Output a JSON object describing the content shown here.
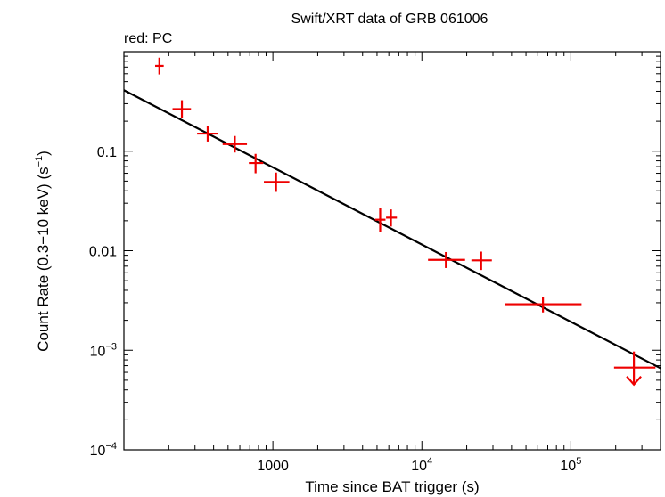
{
  "chart_data": {
    "type": "scatter",
    "title": "Swift/XRT data of GRB 061006",
    "subtitle": "red: PC",
    "xlabel": "Time since BAT trigger (s)",
    "ylabel_main": "Count Rate (0.3−10 keV) (s",
    "ylabel_sup": "−1",
    "ylabel_end": ")",
    "x_scale": "log",
    "y_scale": "log",
    "xlim": [
      100,
      400000
    ],
    "ylim": [
      0.0001,
      1
    ],
    "x_ticks": [
      {
        "value": 1000,
        "base": "1000",
        "exp": ""
      },
      {
        "value": 10000,
        "base": "10",
        "exp": "4"
      },
      {
        "value": 100000,
        "base": "10",
        "exp": "5"
      }
    ],
    "y_ticks": [
      {
        "value": 0.1,
        "base": "0.1",
        "exp": ""
      },
      {
        "value": 0.01,
        "base": "0.01",
        "exp": ""
      },
      {
        "value": 0.001,
        "base": "10",
        "exp": "−3"
      },
      {
        "value": 0.0001,
        "base": "10",
        "exp": "−4"
      }
    ],
    "colors": {
      "data": "#ee0000",
      "fit": "#000000",
      "axes": "#000000"
    },
    "series": [
      {
        "name": "PC",
        "points": [
          {
            "x": 173,
            "xlo": 162,
            "xhi": 185,
            "y": 0.72,
            "ylo": 0.59,
            "yhi": 0.87
          },
          {
            "x": 245,
            "xlo": 212,
            "xhi": 282,
            "y": 0.265,
            "ylo": 0.215,
            "yhi": 0.325
          },
          {
            "x": 365,
            "xlo": 310,
            "xhi": 430,
            "y": 0.15,
            "ylo": 0.125,
            "yhi": 0.18
          },
          {
            "x": 555,
            "xlo": 460,
            "xhi": 670,
            "y": 0.118,
            "ylo": 0.097,
            "yhi": 0.142
          },
          {
            "x": 765,
            "xlo": 690,
            "xhi": 860,
            "y": 0.076,
            "ylo": 0.06,
            "yhi": 0.094
          },
          {
            "x": 1050,
            "xlo": 870,
            "xhi": 1290,
            "y": 0.049,
            "ylo": 0.039,
            "yhi": 0.061
          },
          {
            "x": 5250,
            "xlo": 4850,
            "xhi": 5700,
            "y": 0.0205,
            "ylo": 0.0155,
            "yhi": 0.027
          },
          {
            "x": 6200,
            "xlo": 5750,
            "xhi": 6800,
            "y": 0.0215,
            "ylo": 0.0175,
            "yhi": 0.026
          },
          {
            "x": 14500,
            "xlo": 11000,
            "xhi": 19500,
            "y": 0.0081,
            "ylo": 0.0067,
            "yhi": 0.0097
          },
          {
            "x": 25000,
            "xlo": 21500,
            "xhi": 29500,
            "y": 0.008,
            "ylo": 0.0064,
            "yhi": 0.0098
          },
          {
            "x": 65000,
            "xlo": 36000,
            "xhi": 118000,
            "y": 0.0029,
            "ylo": 0.0024,
            "yhi": 0.0034
          }
        ],
        "upper_limits": [
          {
            "x": 265000,
            "xlo": 195000,
            "xhi": 370000,
            "y": 0.00067
          }
        ]
      }
    ],
    "fit_line": {
      "type": "power_law",
      "x": [
        100,
        400000
      ],
      "y": [
        0.41,
        0.00066
      ]
    }
  }
}
